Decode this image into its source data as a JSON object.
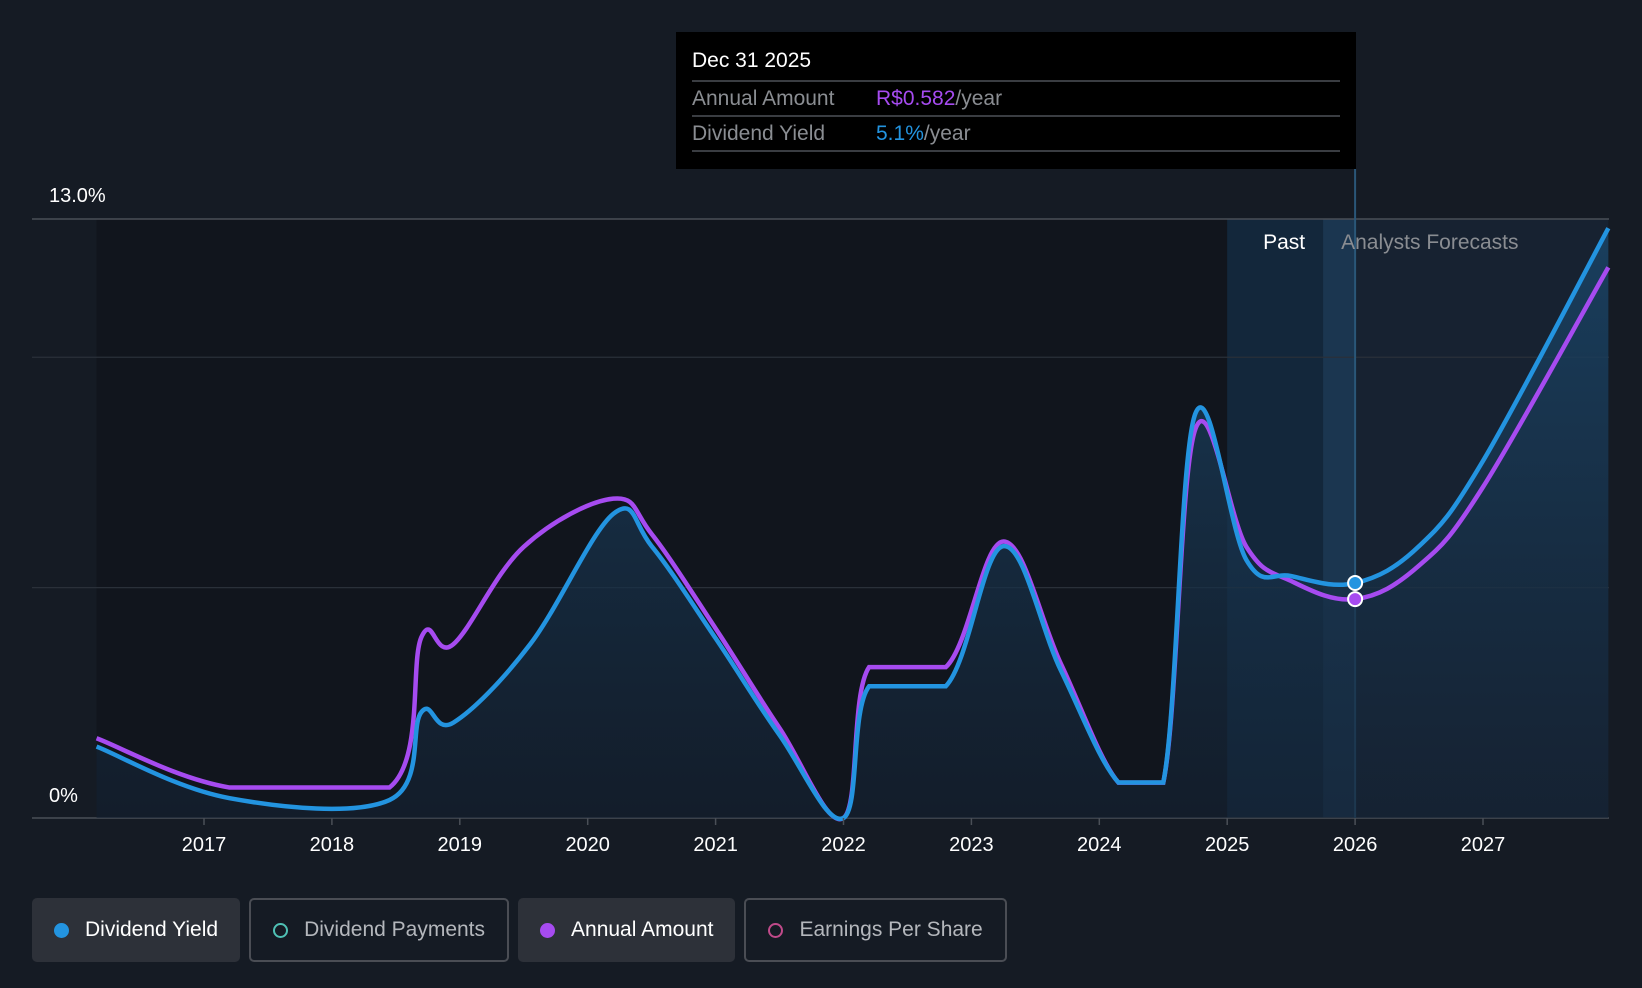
{
  "tooltip": {
    "date": "Dec 31 2025",
    "rows": [
      {
        "label": "Annual Amount",
        "value": "R$0.582",
        "unit": "/year",
        "color": "#a64bf0"
      },
      {
        "label": "Dividend Yield",
        "value": "5.1%",
        "unit": "/year",
        "color": "#2394e0"
      }
    ]
  },
  "legend": [
    {
      "label": "Dividend Yield",
      "color": "#2394e0",
      "active": true
    },
    {
      "label": "Dividend Payments",
      "color": "#4fc1b5",
      "active": false
    },
    {
      "label": "Annual Amount",
      "color": "#a64bf0",
      "active": true
    },
    {
      "label": "Earnings Per Share",
      "color": "#c04a8a",
      "active": false
    }
  ],
  "chart_data": {
    "type": "line",
    "ylim": [
      0,
      13
    ],
    "y_tick_labels": [
      "13.0%",
      "0%"
    ],
    "gridlines": [
      0,
      5,
      10,
      13
    ],
    "x_ticks": [
      2017,
      2018,
      2019,
      2020,
      2021,
      2022,
      2023,
      2024,
      2025,
      2026,
      2027
    ],
    "xlim": [
      2016.16,
      2027.98
    ],
    "regions": {
      "past_label": "Past",
      "forecast_label": "Analysts Forecasts",
      "past_start": 2025,
      "highlight_start": 2025.75,
      "now": 2026
    },
    "amount_scale_per_percent": 0.1225,
    "series": [
      {
        "name": "Dividend Yield",
        "unit": "%",
        "color": "#2394e0",
        "x": [
          2016.16,
          2017.2,
          2018.45,
          2018.7,
          2018.95,
          2019.55,
          2020.2,
          2020.5,
          2021,
          2021.5,
          2022,
          2022.2,
          2022.8,
          2023.25,
          2023.7,
          2024.15,
          2024.5,
          2024.75,
          2025.15,
          2025.5,
          2026,
          2026.5,
          2027,
          2027.98
        ],
        "values": [
          1.55,
          0.43,
          0.39,
          2.3,
          2.07,
          3.77,
          6.6,
          5.9,
          3.9,
          1.8,
          0,
          2.86,
          2.86,
          5.9,
          3.2,
          0.77,
          0.77,
          8.77,
          5.6,
          5.25,
          5.1,
          5.9,
          7.75,
          12.8
        ]
      },
      {
        "name": "Annual Amount",
        "unit": "R$",
        "color": "#a64bf0",
        "x": [
          2016.16,
          2017.2,
          2018.45,
          2018.7,
          2018.95,
          2019.5,
          2020.2,
          2020.5,
          2021,
          2021.5,
          2022,
          2022.2,
          2022.8,
          2023.25,
          2023.7,
          2024.15,
          2024.5,
          2024.75,
          2025.15,
          2025.5,
          2026,
          2026.5,
          2027,
          2027.98
        ],
        "values": [
          0.212,
          0.081,
          0.081,
          0.481,
          0.462,
          0.721,
          0.849,
          0.755,
          0.504,
          0.239,
          0,
          0.401,
          0.401,
          0.735,
          0.41,
          0.094,
          0.094,
          1.033,
          0.721,
          0.63,
          0.582,
          0.671,
          0.88,
          1.464
        ]
      }
    ]
  }
}
